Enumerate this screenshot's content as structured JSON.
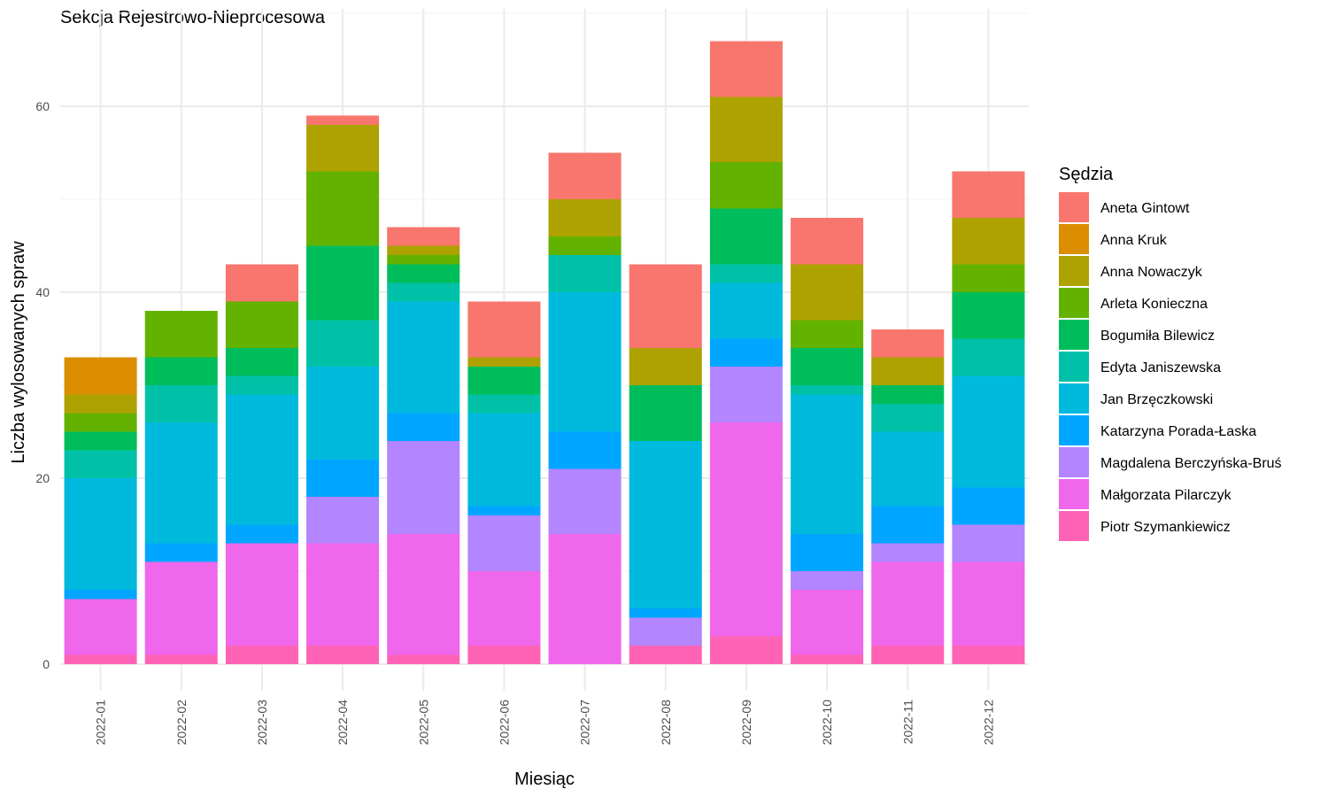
{
  "chart_data": {
    "type": "bar",
    "stacked": true,
    "title": "Sekcja Rejestrowo-Nieprocesowa",
    "xlabel": "Miesiąc",
    "ylabel": "Liczba wylosowanych spraw",
    "ylim": [
      0,
      70
    ],
    "yticks": [
      0,
      20,
      40,
      60
    ],
    "grid": true,
    "legend_title": "Sędzia",
    "legend_position": "right",
    "categories": [
      "2022-01",
      "2022-02",
      "2022-03",
      "2022-04",
      "2022-05",
      "2022-06",
      "2022-07",
      "2022-08",
      "2022-09",
      "2022-10",
      "2022-11",
      "2022-12"
    ],
    "stack_order_bottom_to_top": [
      "Piotr Szymankiewicz",
      "Małgorzata Pilarczyk",
      "Magdalena Berczyńska-Bruś",
      "Katarzyna Porada-Łaska",
      "Jan Brzęczkowski",
      "Edyta Janiszewska",
      "Bogumiła Bilewicz",
      "Arleta Konieczna",
      "Anna Nowaczyk",
      "Anna Kruk",
      "Aneta Gintowt"
    ],
    "series": [
      {
        "name": "Aneta Gintowt",
        "color": "#F8766D",
        "values": [
          0,
          0,
          4,
          1,
          2,
          6,
          5,
          9,
          6,
          5,
          3,
          5
        ]
      },
      {
        "name": "Anna Kruk",
        "color": "#DB8E00",
        "values": [
          4,
          0,
          0,
          0,
          0,
          0,
          0,
          0,
          0,
          0,
          0,
          0
        ]
      },
      {
        "name": "Anna Nowaczyk",
        "color": "#AEA200",
        "values": [
          2,
          0,
          0,
          5,
          1,
          1,
          4,
          4,
          7,
          6,
          3,
          5
        ]
      },
      {
        "name": "Arleta Konieczna",
        "color": "#64B200",
        "values": [
          2,
          5,
          5,
          8,
          1,
          0,
          2,
          0,
          5,
          3,
          0,
          3
        ]
      },
      {
        "name": "Bogumiła Bilewicz",
        "color": "#00BD5C",
        "values": [
          2,
          3,
          3,
          8,
          2,
          3,
          0,
          6,
          6,
          4,
          2,
          5
        ]
      },
      {
        "name": "Edyta Janiszewska",
        "color": "#00C1A7",
        "values": [
          3,
          4,
          2,
          5,
          2,
          2,
          4,
          0,
          2,
          1,
          3,
          4
        ]
      },
      {
        "name": "Jan Brzęczkowski",
        "color": "#00BADE",
        "values": [
          12,
          13,
          14,
          10,
          12,
          10,
          15,
          18,
          6,
          15,
          8,
          12
        ]
      },
      {
        "name": "Katarzyna Porada-Łaska",
        "color": "#00A6FF",
        "values": [
          1,
          2,
          2,
          4,
          3,
          1,
          4,
          1,
          3,
          4,
          4,
          4
        ]
      },
      {
        "name": "Magdalena Berczyńska-Bruś",
        "color": "#B385FF",
        "values": [
          0,
          0,
          0,
          5,
          10,
          6,
          7,
          3,
          6,
          2,
          2,
          4
        ]
      },
      {
        "name": "Małgorzata Pilarczyk",
        "color": "#EF67EB",
        "values": [
          6,
          10,
          11,
          11,
          13,
          8,
          14,
          0,
          23,
          7,
          9,
          9
        ]
      },
      {
        "name": "Piotr Szymankiewicz",
        "color": "#FF63B6",
        "values": [
          1,
          1,
          2,
          2,
          1,
          2,
          0,
          2,
          3,
          1,
          2,
          2
        ]
      }
    ]
  }
}
